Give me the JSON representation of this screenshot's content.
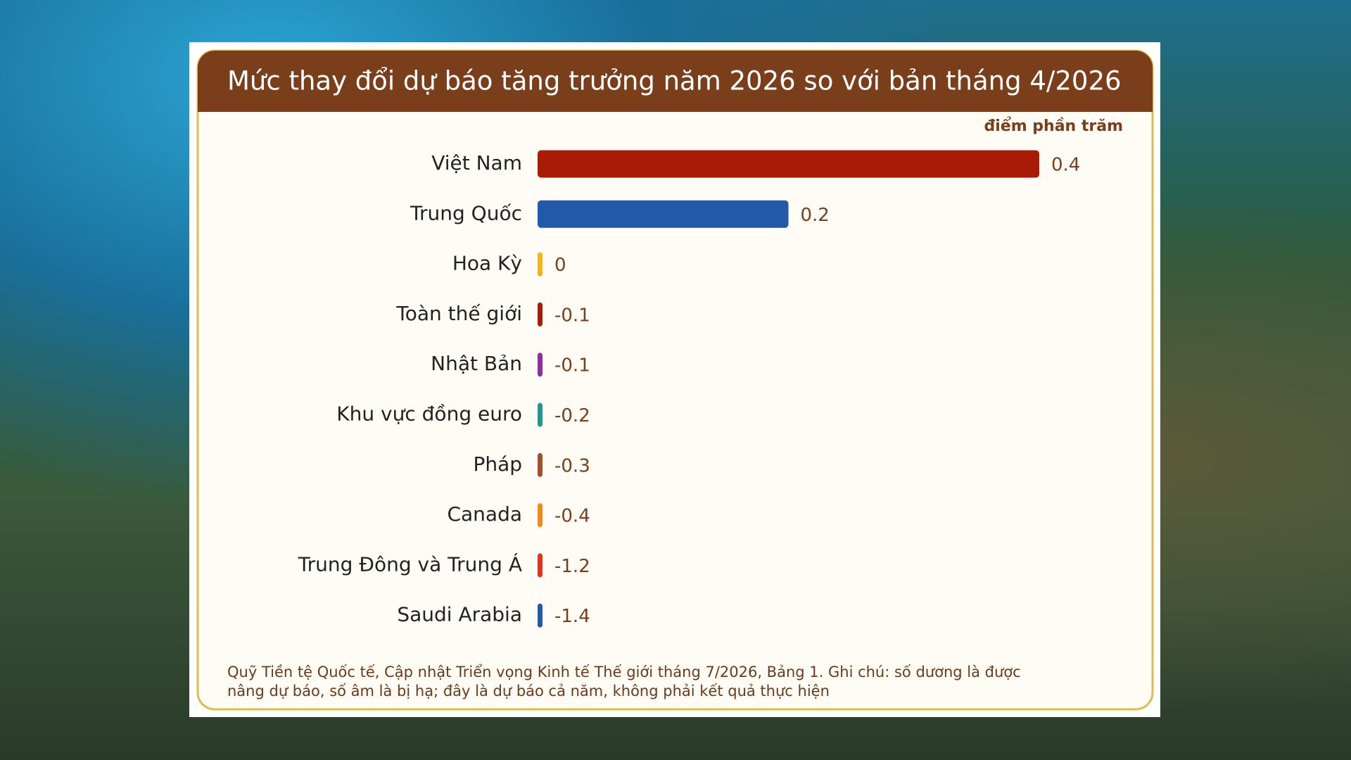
{
  "chart_data": {
    "type": "bar",
    "orientation": "horizontal",
    "title": "Mức thay đổi dự báo tăng trưởng năm 2026 so với bản tháng 4/2026",
    "unit_label": "điểm phần trăm",
    "categories": [
      "Việt Nam",
      "Trung Quốc",
      "Hoa Kỳ",
      "Toàn thế giới",
      "Nhật Bản",
      "Khu vực đồng euro",
      "Pháp",
      "Canada",
      "Trung Đông và Trung Á",
      "Saudi Arabia"
    ],
    "values": [
      0.4,
      0.2,
      0,
      -0.1,
      -0.1,
      -0.2,
      -0.3,
      -0.4,
      -1.2,
      -1.4
    ],
    "colors": [
      "#a81c07",
      "#2359a8",
      "#f2b418",
      "#a81c07",
      "#8e2f9e",
      "#1d9a8c",
      "#a0522d",
      "#f08a1c",
      "#e0341c",
      "#2359a8"
    ],
    "note": "Quỹ Tiền tệ Quốc tế, Cập nhật Triển vọng Kinh tế Thế giới tháng 7/2026, Bảng 1. Ghi chú: số dương là được nâng dự báo, số âm là bị hạ; đây là dự báo cả năm, không phải kết quả thực hiện"
  }
}
